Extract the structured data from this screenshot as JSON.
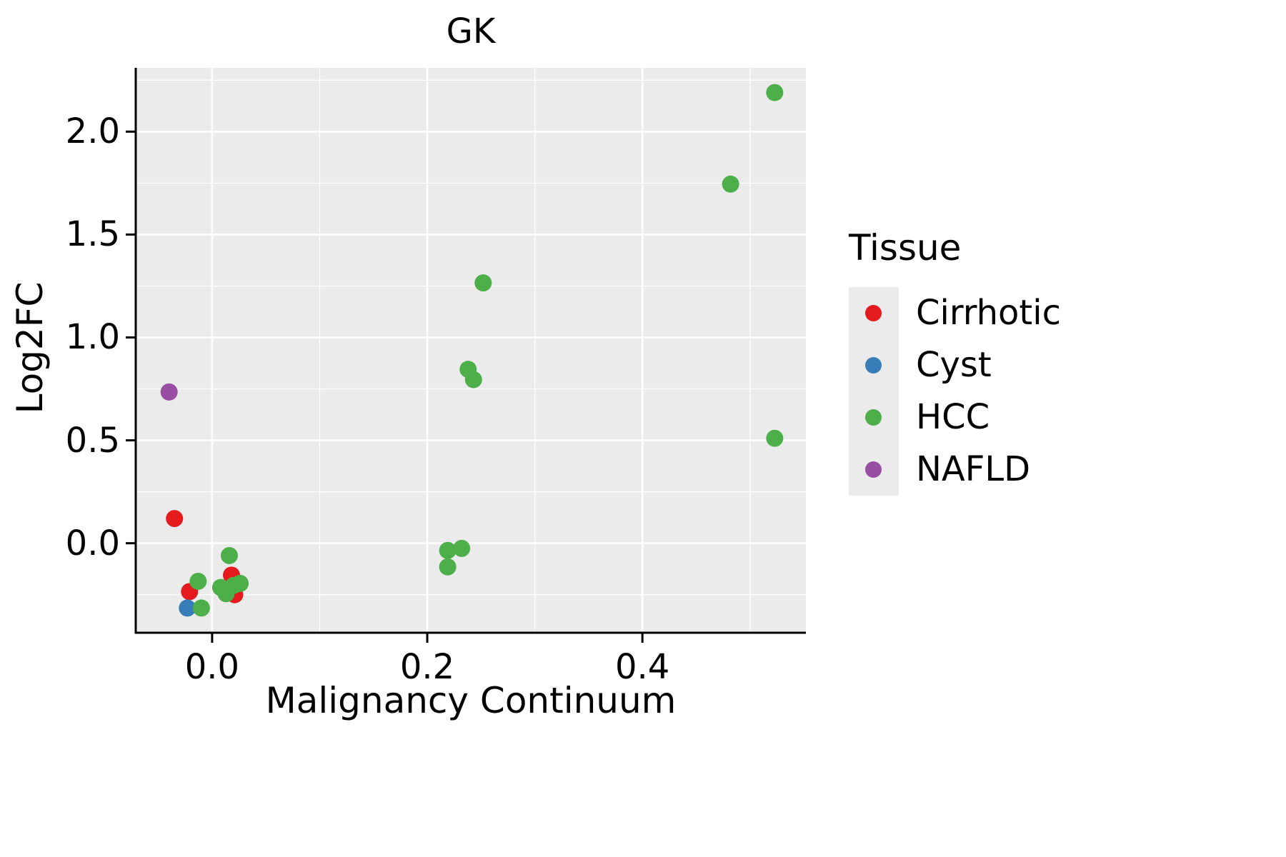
{
  "chart_data": {
    "type": "scatter",
    "title": "GK",
    "xlabel": "Malignancy Continuum",
    "ylabel": "Log2FC",
    "xlim": [
      -0.071,
      0.552
    ],
    "ylim": [
      -0.435,
      2.31
    ],
    "x_ticks": [
      0.0,
      0.2,
      0.4
    ],
    "x_tick_labels": [
      "0.0",
      "0.2",
      "0.4"
    ],
    "y_ticks": [
      0.0,
      0.5,
      1.0,
      1.5,
      2.0
    ],
    "y_tick_labels": [
      "0.0",
      "0.5",
      "1.0",
      "1.5",
      "2.0"
    ],
    "x_minor": [
      0.1,
      0.3,
      0.5
    ],
    "y_minor": [
      -0.25,
      0.25,
      0.75,
      1.25,
      1.75,
      2.25
    ],
    "grid": true,
    "panel_bg": "#ebebeb",
    "grid_color": "#ffffff",
    "axis_color": "#000000",
    "point_radius": 12,
    "legend": {
      "title": "Tissue",
      "position": "right",
      "entries": [
        "Cirrhotic",
        "Cyst",
        "HCC",
        "NAFLD"
      ]
    },
    "series": [
      {
        "name": "Cirrhotic",
        "color": "#e41a1c",
        "points": [
          [
            -0.035,
            0.12
          ],
          [
            -0.021,
            -0.235
          ],
          [
            0.018,
            -0.155
          ],
          [
            0.021,
            -0.25
          ]
        ]
      },
      {
        "name": "Cyst",
        "color": "#377eb8",
        "points": [
          [
            -0.023,
            -0.315
          ]
        ]
      },
      {
        "name": "HCC",
        "color": "#4daf4a",
        "points": [
          [
            0.523,
            2.19
          ],
          [
            0.482,
            1.745
          ],
          [
            0.252,
            1.265
          ],
          [
            0.238,
            0.845
          ],
          [
            0.243,
            0.795
          ],
          [
            0.523,
            0.51
          ],
          [
            0.219,
            -0.035
          ],
          [
            0.232,
            -0.025
          ],
          [
            0.219,
            -0.115
          ],
          [
            0.016,
            -0.06
          ],
          [
            -0.013,
            -0.185
          ],
          [
            -0.01,
            -0.315
          ],
          [
            0.008,
            -0.215
          ],
          [
            0.014,
            -0.225
          ],
          [
            0.02,
            -0.205
          ],
          [
            0.026,
            -0.195
          ],
          [
            0.013,
            -0.245
          ]
        ]
      },
      {
        "name": "NAFLD",
        "color": "#984ea3",
        "points": [
          [
            -0.04,
            0.735
          ]
        ]
      }
    ]
  }
}
